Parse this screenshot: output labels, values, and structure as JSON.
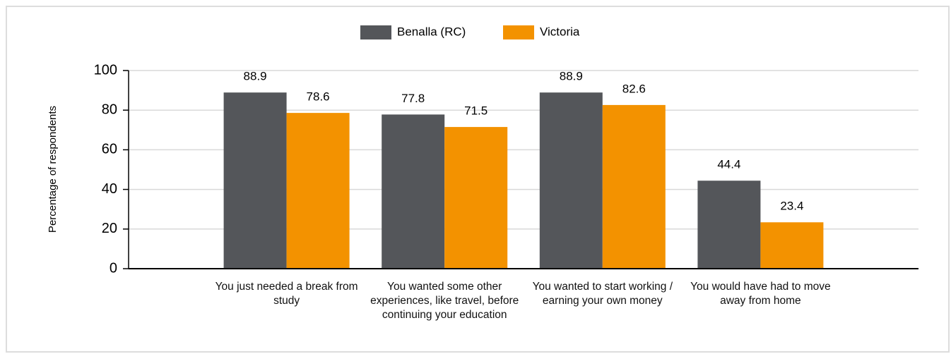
{
  "chart_data": {
    "type": "bar",
    "y_label": "Percentage of respondents",
    "categories": [
      "You just needed a break from study",
      "You wanted some other experiences, like travel, before continuing your education",
      "You wanted to start working / earning your own money",
      "You would have had to move away from home"
    ],
    "series": [
      {
        "name": "Benalla (RC)",
        "color": "#54565a",
        "values": [
          88.9,
          77.8,
          88.9,
          44.4
        ]
      },
      {
        "name": "Victoria",
        "color": "#f39200",
        "values": [
          78.6,
          71.5,
          82.6,
          23.4
        ]
      }
    ],
    "ylim": [
      0,
      100
    ],
    "yticks": [
      0,
      20,
      40,
      60,
      80,
      100
    ],
    "grid": true,
    "legend": "top"
  }
}
